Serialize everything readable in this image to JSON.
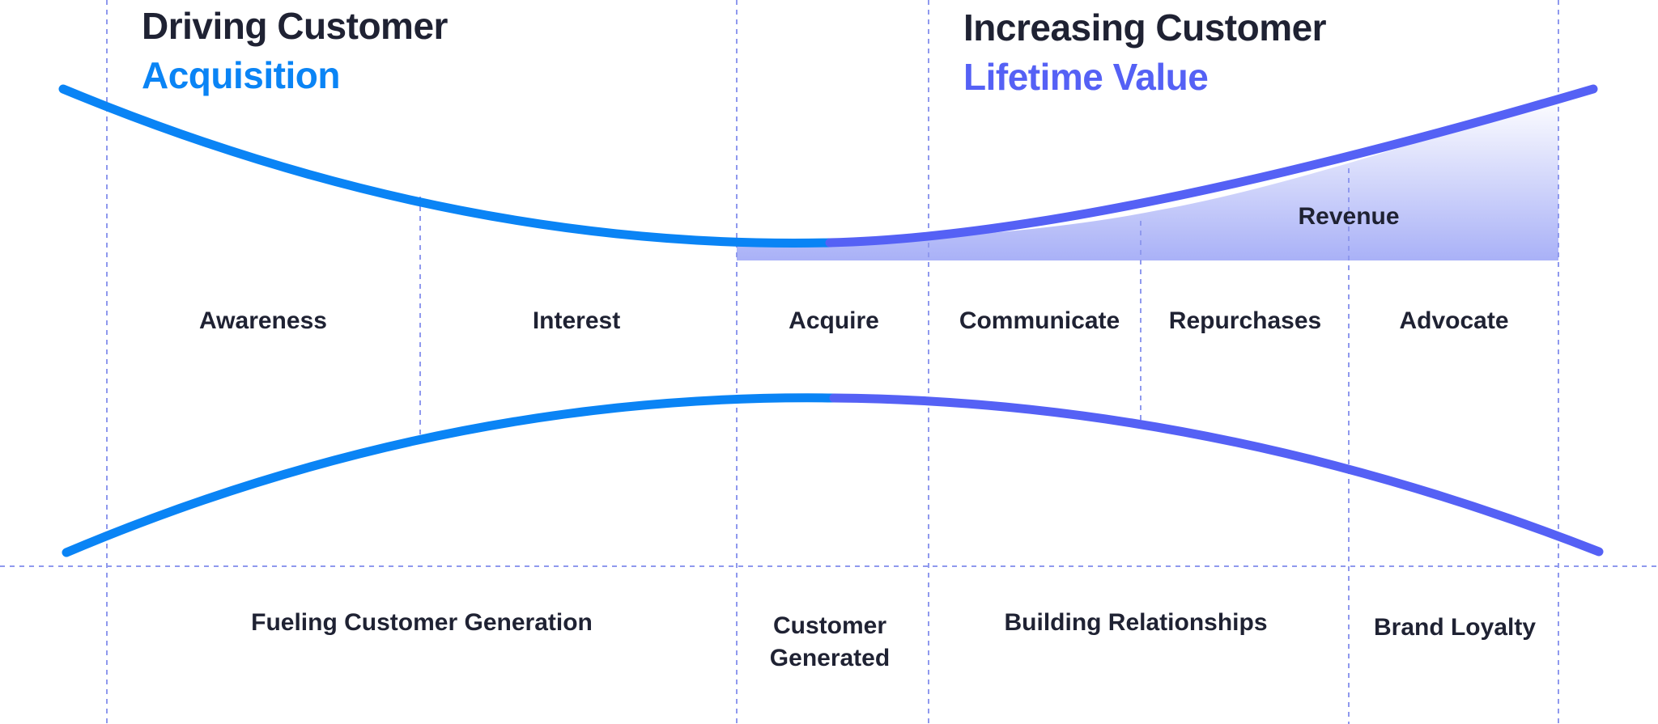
{
  "colors": {
    "blue": "#0a84f5",
    "purple": "#5561f5",
    "grid": "#8f99ee",
    "revenue_top": "#ffffff",
    "revenue_bottom": "#a9b1f7",
    "ink": "#1f2233"
  },
  "headings": {
    "left": {
      "line1": "Driving Customer",
      "line2": "Acquisition"
    },
    "right": {
      "line1": "Increasing Customer",
      "line2": "Lifetime Value"
    }
  },
  "revenue_label": "Revenue",
  "stages": [
    "Awareness",
    "Interest",
    "Acquire",
    "Communicate",
    "Repurchases",
    "Advocate"
  ],
  "phases": [
    "Fueling Customer Generation",
    "Customer Generated",
    "Building Relationships",
    "Brand Loyalty"
  ]
}
